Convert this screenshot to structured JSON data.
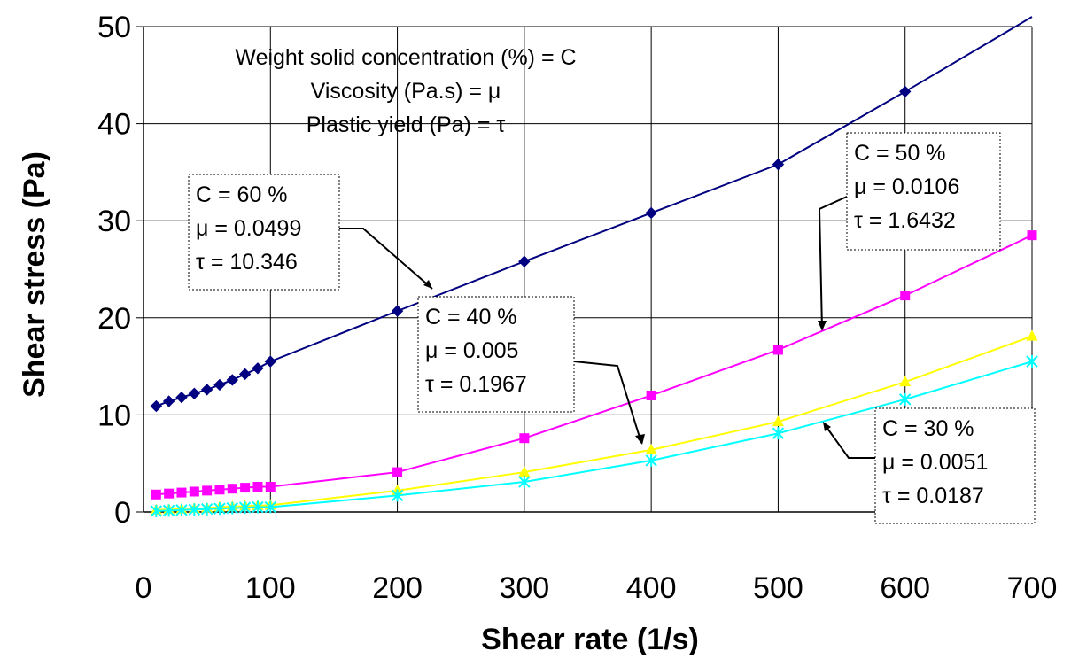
{
  "chart_data": {
    "type": "line",
    "title": "",
    "xlabel": "Shear rate (1/s)",
    "ylabel": "Shear stress (Pa)",
    "xlim": [
      0,
      700
    ],
    "ylim": [
      0,
      50
    ],
    "x_ticks": [
      "0",
      "100",
      "200",
      "300",
      "400",
      "500",
      "600",
      "700"
    ],
    "y_ticks": [
      "0",
      "10",
      "20",
      "30",
      "40",
      "50"
    ],
    "grid": "vertical and horizontal major gridlines",
    "legend": "none",
    "series": [
      {
        "color": "#000080",
        "marker": "diamond",
        "x": [
          10,
          20,
          30,
          40,
          50,
          60,
          70,
          80,
          90,
          100,
          200,
          300,
          400,
          500,
          600,
          700
        ],
        "y": [
          10.9,
          11.4,
          11.8,
          12.2,
          12.6,
          13.1,
          13.6,
          14.2,
          14.8,
          15.5,
          20.7,
          25.8,
          30.8,
          35.8,
          43.3,
          51.0
        ],
        "annotation": [
          "C = 60 %",
          "μ = 0.0499",
          "τ = 10.346"
        ]
      },
      {
        "color": "#ff00ff",
        "marker": "square",
        "x": [
          10,
          20,
          30,
          40,
          50,
          60,
          70,
          80,
          90,
          100,
          200,
          300,
          400,
          500,
          600,
          700
        ],
        "y": [
          1.8,
          1.9,
          2.0,
          2.1,
          2.2,
          2.3,
          2.4,
          2.5,
          2.6,
          2.6,
          4.1,
          7.6,
          12.0,
          16.7,
          22.3,
          28.5
        ],
        "annotation": [
          "C = 50 %",
          "μ = 0.0106",
          "τ = 1.6432"
        ]
      },
      {
        "color": "#ffff00",
        "marker": "triangle",
        "x": [
          10,
          20,
          30,
          40,
          50,
          60,
          70,
          80,
          90,
          100,
          200,
          300,
          400,
          500,
          600,
          700
        ],
        "y": [
          0.2,
          0.25,
          0.3,
          0.35,
          0.4,
          0.5,
          0.55,
          0.6,
          0.65,
          0.7,
          2.2,
          4.1,
          6.4,
          9.3,
          13.4,
          18.1
        ],
        "annotation": [
          "C = 40 %",
          "μ = 0.005",
          "τ = 0.1967"
        ]
      },
      {
        "color": "#00ffff",
        "marker": "x-star",
        "x": [
          10,
          20,
          30,
          40,
          50,
          60,
          70,
          80,
          90,
          100,
          200,
          300,
          400,
          500,
          600,
          700
        ],
        "y": [
          0.1,
          0.15,
          0.2,
          0.25,
          0.3,
          0.35,
          0.4,
          0.45,
          0.5,
          0.5,
          1.7,
          3.1,
          5.3,
          8.1,
          11.6,
          15.5
        ],
        "annotation": [
          "C = 30 %",
          "μ = 0.0051",
          "τ = 0.0187"
        ]
      }
    ],
    "header_note": [
      "Weight solid concentration (%) = C",
      "Viscosity (Pa.s)  = μ",
      "Plastic yield (Pa) = τ"
    ]
  }
}
